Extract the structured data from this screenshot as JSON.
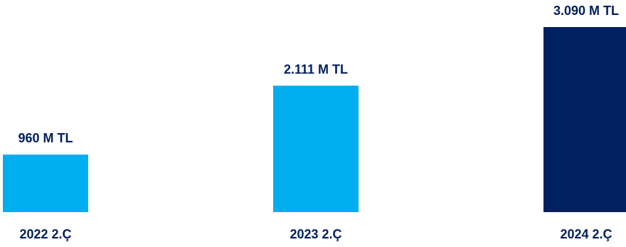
{
  "chart_data": {
    "type": "bar",
    "categories": [
      "2022 2.Ç",
      "2023 2.Ç",
      "2024 2.Ç"
    ],
    "values": [
      960,
      2111,
      3090
    ],
    "value_labels": [
      "960 M TL",
      "2.111 M TL",
      "3.090 M TL"
    ],
    "bar_colors": [
      "#00aeef",
      "#00aeef",
      "#002060"
    ],
    "label_color": "#002060",
    "title": "",
    "xlabel": "",
    "ylabel": "",
    "ylim": [
      0,
      3090
    ],
    "grid": false,
    "legend": "none"
  }
}
